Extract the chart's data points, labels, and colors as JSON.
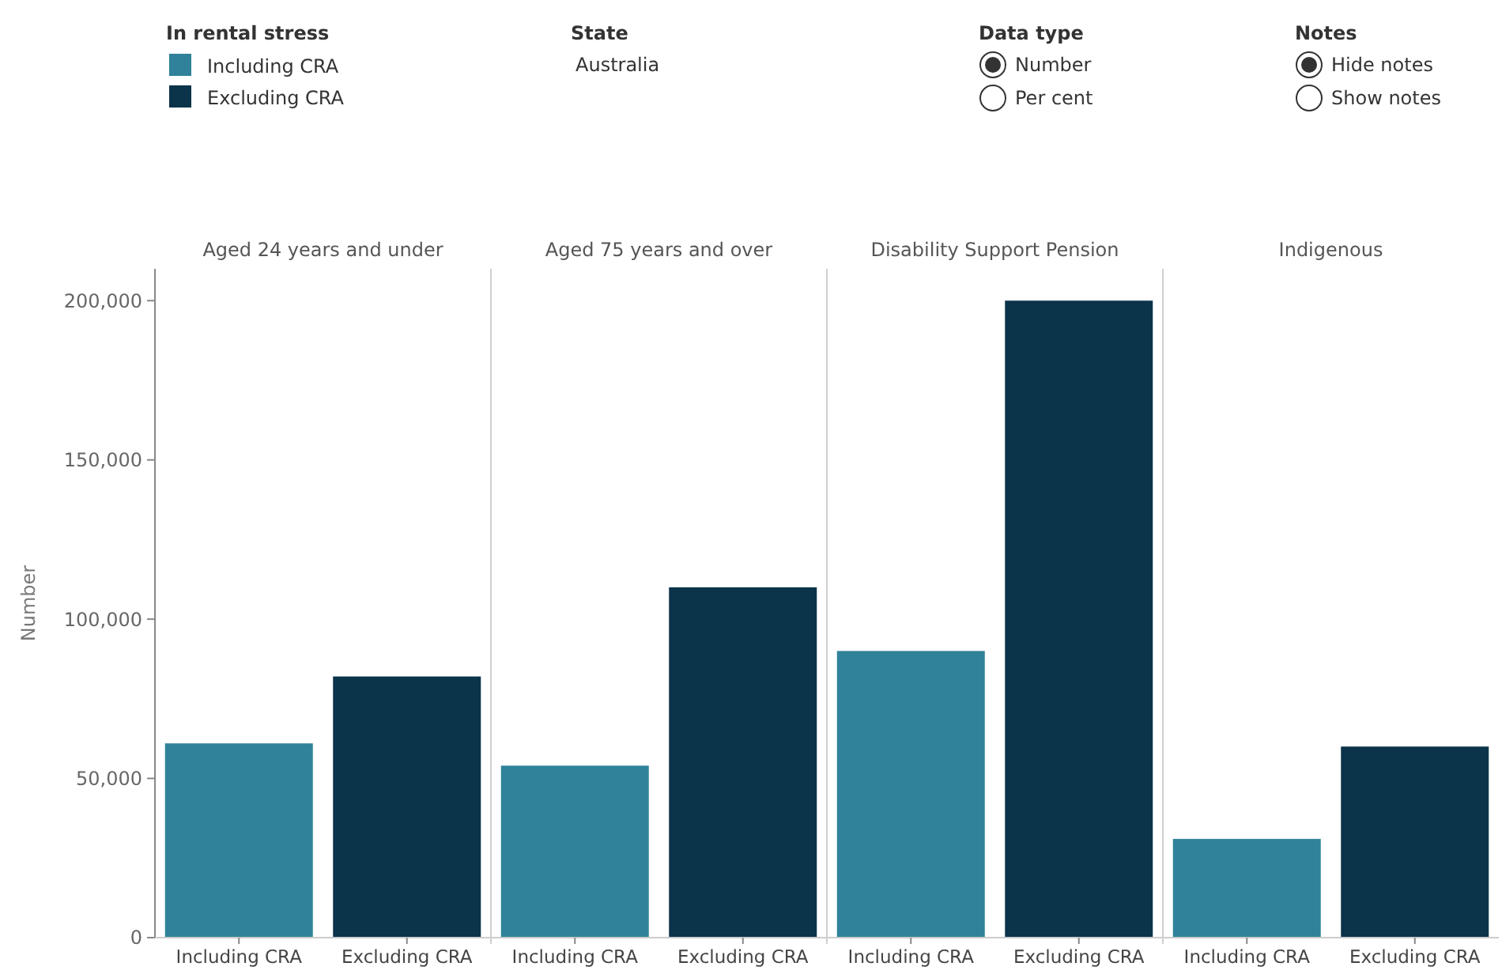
{
  "chart_data": [
    {
      "type": "bar",
      "title": "Aged 24 years and under",
      "ylabel": "Number",
      "legend_title": "In rental stress",
      "legend": "top left",
      "categories": [
        "Including CRA",
        "Excluding CRA"
      ],
      "series": [
        {
          "name": "Including CRA",
          "color": "#2f8299",
          "values": [
            61000,
            null
          ]
        },
        {
          "name": "Excluding CRA",
          "color": "#0b344a",
          "values": [
            null,
            82000
          ]
        }
      ],
      "ylim": [
        0,
        210000
      ],
      "yticks": [
        {
          "value": 0,
          "label": "0"
        },
        {
          "value": 50000,
          "label": "50,000"
        },
        {
          "value": 100000,
          "label": "100,000"
        },
        {
          "value": 150000,
          "label": "150,000"
        },
        {
          "value": 200000,
          "label": "200,000"
        }
      ],
      "annotations": [
        "State",
        "Australia",
        "Data type",
        "Number",
        "Per cent",
        "Notes",
        "Hide notes",
        "Show notes"
      ]
    },
    {
      "type": "bar",
      "title": "Aged 75 years and over",
      "categories": [
        "Including CRA",
        "Excluding CRA"
      ],
      "series": [
        {
          "color": "#2f8299",
          "values": [
            54000,
            null
          ]
        },
        {
          "color": "#0b344a",
          "values": [
            null,
            110000
          ]
        }
      ],
      "ylim": [
        0,
        210000
      ],
      "tick_labels": "x"
    },
    {
      "type": "bar",
      "title": "Disability Support Pension",
      "categories": [
        "Including CRA",
        "Excluding CRA"
      ],
      "series": [
        {
          "color": "#2f8299",
          "values": [
            90000,
            null
          ]
        },
        {
          "color": "#0b344a",
          "values": [
            null,
            200000
          ]
        }
      ],
      "ylim": [
        0,
        210000
      ],
      "tick_labels": "x"
    },
    {
      "type": "bar",
      "title": "Indigenous",
      "categories": [
        "Including CRA",
        "Excluding CRA"
      ],
      "series": [
        {
          "color": "#2f8299",
          "values": [
            31000,
            null
          ]
        },
        {
          "color": "#0b344a",
          "values": [
            null,
            60000
          ]
        }
      ],
      "ylim": [
        0,
        210000
      ],
      "tick_labels": "x"
    }
  ]
}
